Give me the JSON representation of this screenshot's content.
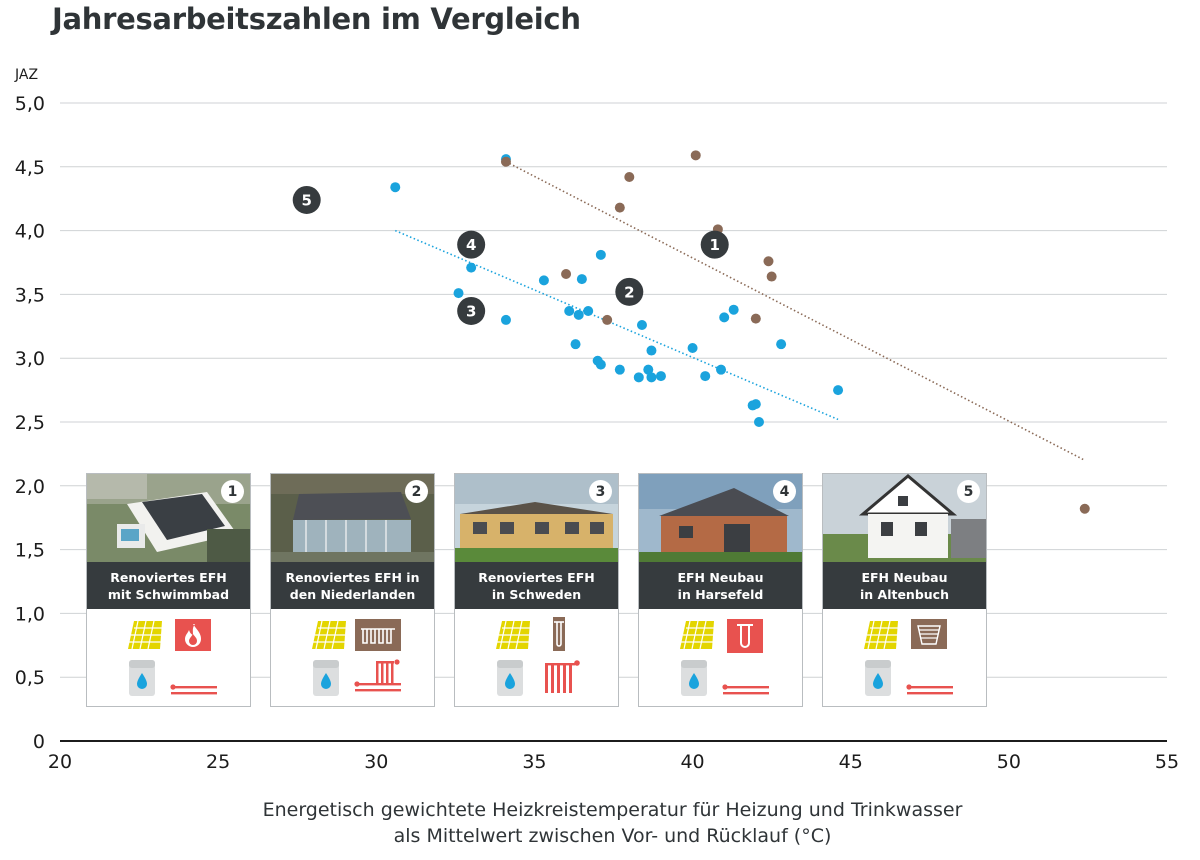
{
  "chart_data": {
    "type": "scatter",
    "title": "Jahresarbeitszahlen im Vergleich",
    "ylabel": "JAZ",
    "xlabel": [
      "Energetisch gewichtete Heizkreistemperatur für Heizung und Trinkwasser",
      "als Mittelwert zwischen Vor- und Rücklauf (°C)"
    ],
    "xlim": [
      20,
      55
    ],
    "ylim": [
      0,
      5
    ],
    "x_ticks": [
      "20",
      "25",
      "30",
      "35",
      "40",
      "45",
      "50",
      "55"
    ],
    "y_ticks": [
      "0",
      "0,5",
      "1,0",
      "1,5",
      "2,0",
      "2,5",
      "3,0",
      "3,5",
      "4,0",
      "4,5",
      "5,0"
    ],
    "grid": true,
    "series": [
      {
        "color": "#1aa3dd",
        "points": [
          [
            30.6,
            4.34
          ],
          [
            34.1,
            4.56
          ],
          [
            32.6,
            3.51
          ],
          [
            33.0,
            3.71
          ],
          [
            34.1,
            3.3
          ],
          [
            35.3,
            3.61
          ],
          [
            36.1,
            3.37
          ],
          [
            36.4,
            3.34
          ],
          [
            36.5,
            3.62
          ],
          [
            36.7,
            3.37
          ],
          [
            37.1,
            3.81
          ],
          [
            36.3,
            3.11
          ],
          [
            37.0,
            2.98
          ],
          [
            37.1,
            2.95
          ],
          [
            37.7,
            2.91
          ],
          [
            38.3,
            2.85
          ],
          [
            38.4,
            3.26
          ],
          [
            38.6,
            2.91
          ],
          [
            38.7,
            3.06
          ],
          [
            38.7,
            2.85
          ],
          [
            39.0,
            2.86
          ],
          [
            40.0,
            3.08
          ],
          [
            40.4,
            2.86
          ],
          [
            40.9,
            2.91
          ],
          [
            41.0,
            3.32
          ],
          [
            41.3,
            3.38
          ],
          [
            41.9,
            2.63
          ],
          [
            42.0,
            2.64
          ],
          [
            42.1,
            2.5
          ],
          [
            42.8,
            3.11
          ],
          [
            44.6,
            2.75
          ]
        ],
        "trendline": [
          [
            30.6,
            4.0
          ],
          [
            44.6,
            2.52
          ]
        ]
      },
      {
        "color": "#8a6a57",
        "points": [
          [
            34.1,
            4.54
          ],
          [
            36.0,
            3.66
          ],
          [
            37.3,
            3.3
          ],
          [
            37.7,
            4.18
          ],
          [
            38.0,
            4.42
          ],
          [
            40.1,
            4.59
          ],
          [
            40.8,
            4.01
          ],
          [
            42.0,
            3.31
          ],
          [
            42.4,
            3.76
          ],
          [
            42.5,
            3.64
          ],
          [
            52.4,
            1.82
          ]
        ],
        "trendline": [
          [
            34.1,
            4.54
          ],
          [
            52.4,
            2.2
          ]
        ]
      }
    ],
    "annotations": [
      {
        "label": "1",
        "x": 40.7,
        "y": 3.89
      },
      {
        "label": "2",
        "x": 38.0,
        "y": 3.52
      },
      {
        "label": "3",
        "x": 33.0,
        "y": 3.37
      },
      {
        "label": "4",
        "x": 33.0,
        "y": 3.89
      },
      {
        "label": "5",
        "x": 27.8,
        "y": 4.24
      }
    ]
  },
  "cards": [
    {
      "number": "1",
      "line1": "Renoviertes EFH",
      "line2": "mit Schwimmbad",
      "source": "flame-icon",
      "emitter": "floor-heating-icon",
      "source_color": "#e8524f",
      "emitter_color": "#e8524f"
    },
    {
      "number": "2",
      "line1": "Renoviertes EFH in",
      "line2": "den Niederlanden",
      "source": "ground-collector-icon",
      "emitter": "radiator-heating-icon",
      "source_color": "#8a6a57",
      "emitter_color": "#e8524f"
    },
    {
      "number": "3",
      "line1": "Renoviertes EFH",
      "line2": "in Schweden",
      "source": "ground-probe-icon",
      "emitter": "radiator-icon",
      "source_color": "#8a6a57",
      "emitter_color": "#e8524f"
    },
    {
      "number": "4",
      "line1": "EFH Neubau",
      "line2": "in Harsefeld",
      "source": "air-probe-icon",
      "emitter": "floor-heating-icon",
      "source_color": "#e8524f",
      "emitter_color": "#e8524f"
    },
    {
      "number": "5",
      "line1": "EFH Neubau",
      "line2": "in Altenbuch",
      "source": "ground-basket-icon",
      "emitter": "floor-heating-icon",
      "source_color": "#8a6a57",
      "emitter_color": "#e8524f"
    }
  ],
  "colors": {
    "blue": "#1aa3dd",
    "brown": "#8a6a57",
    "dark": "#363b3e",
    "red": "#e8524f",
    "solar": "#e3d500"
  }
}
